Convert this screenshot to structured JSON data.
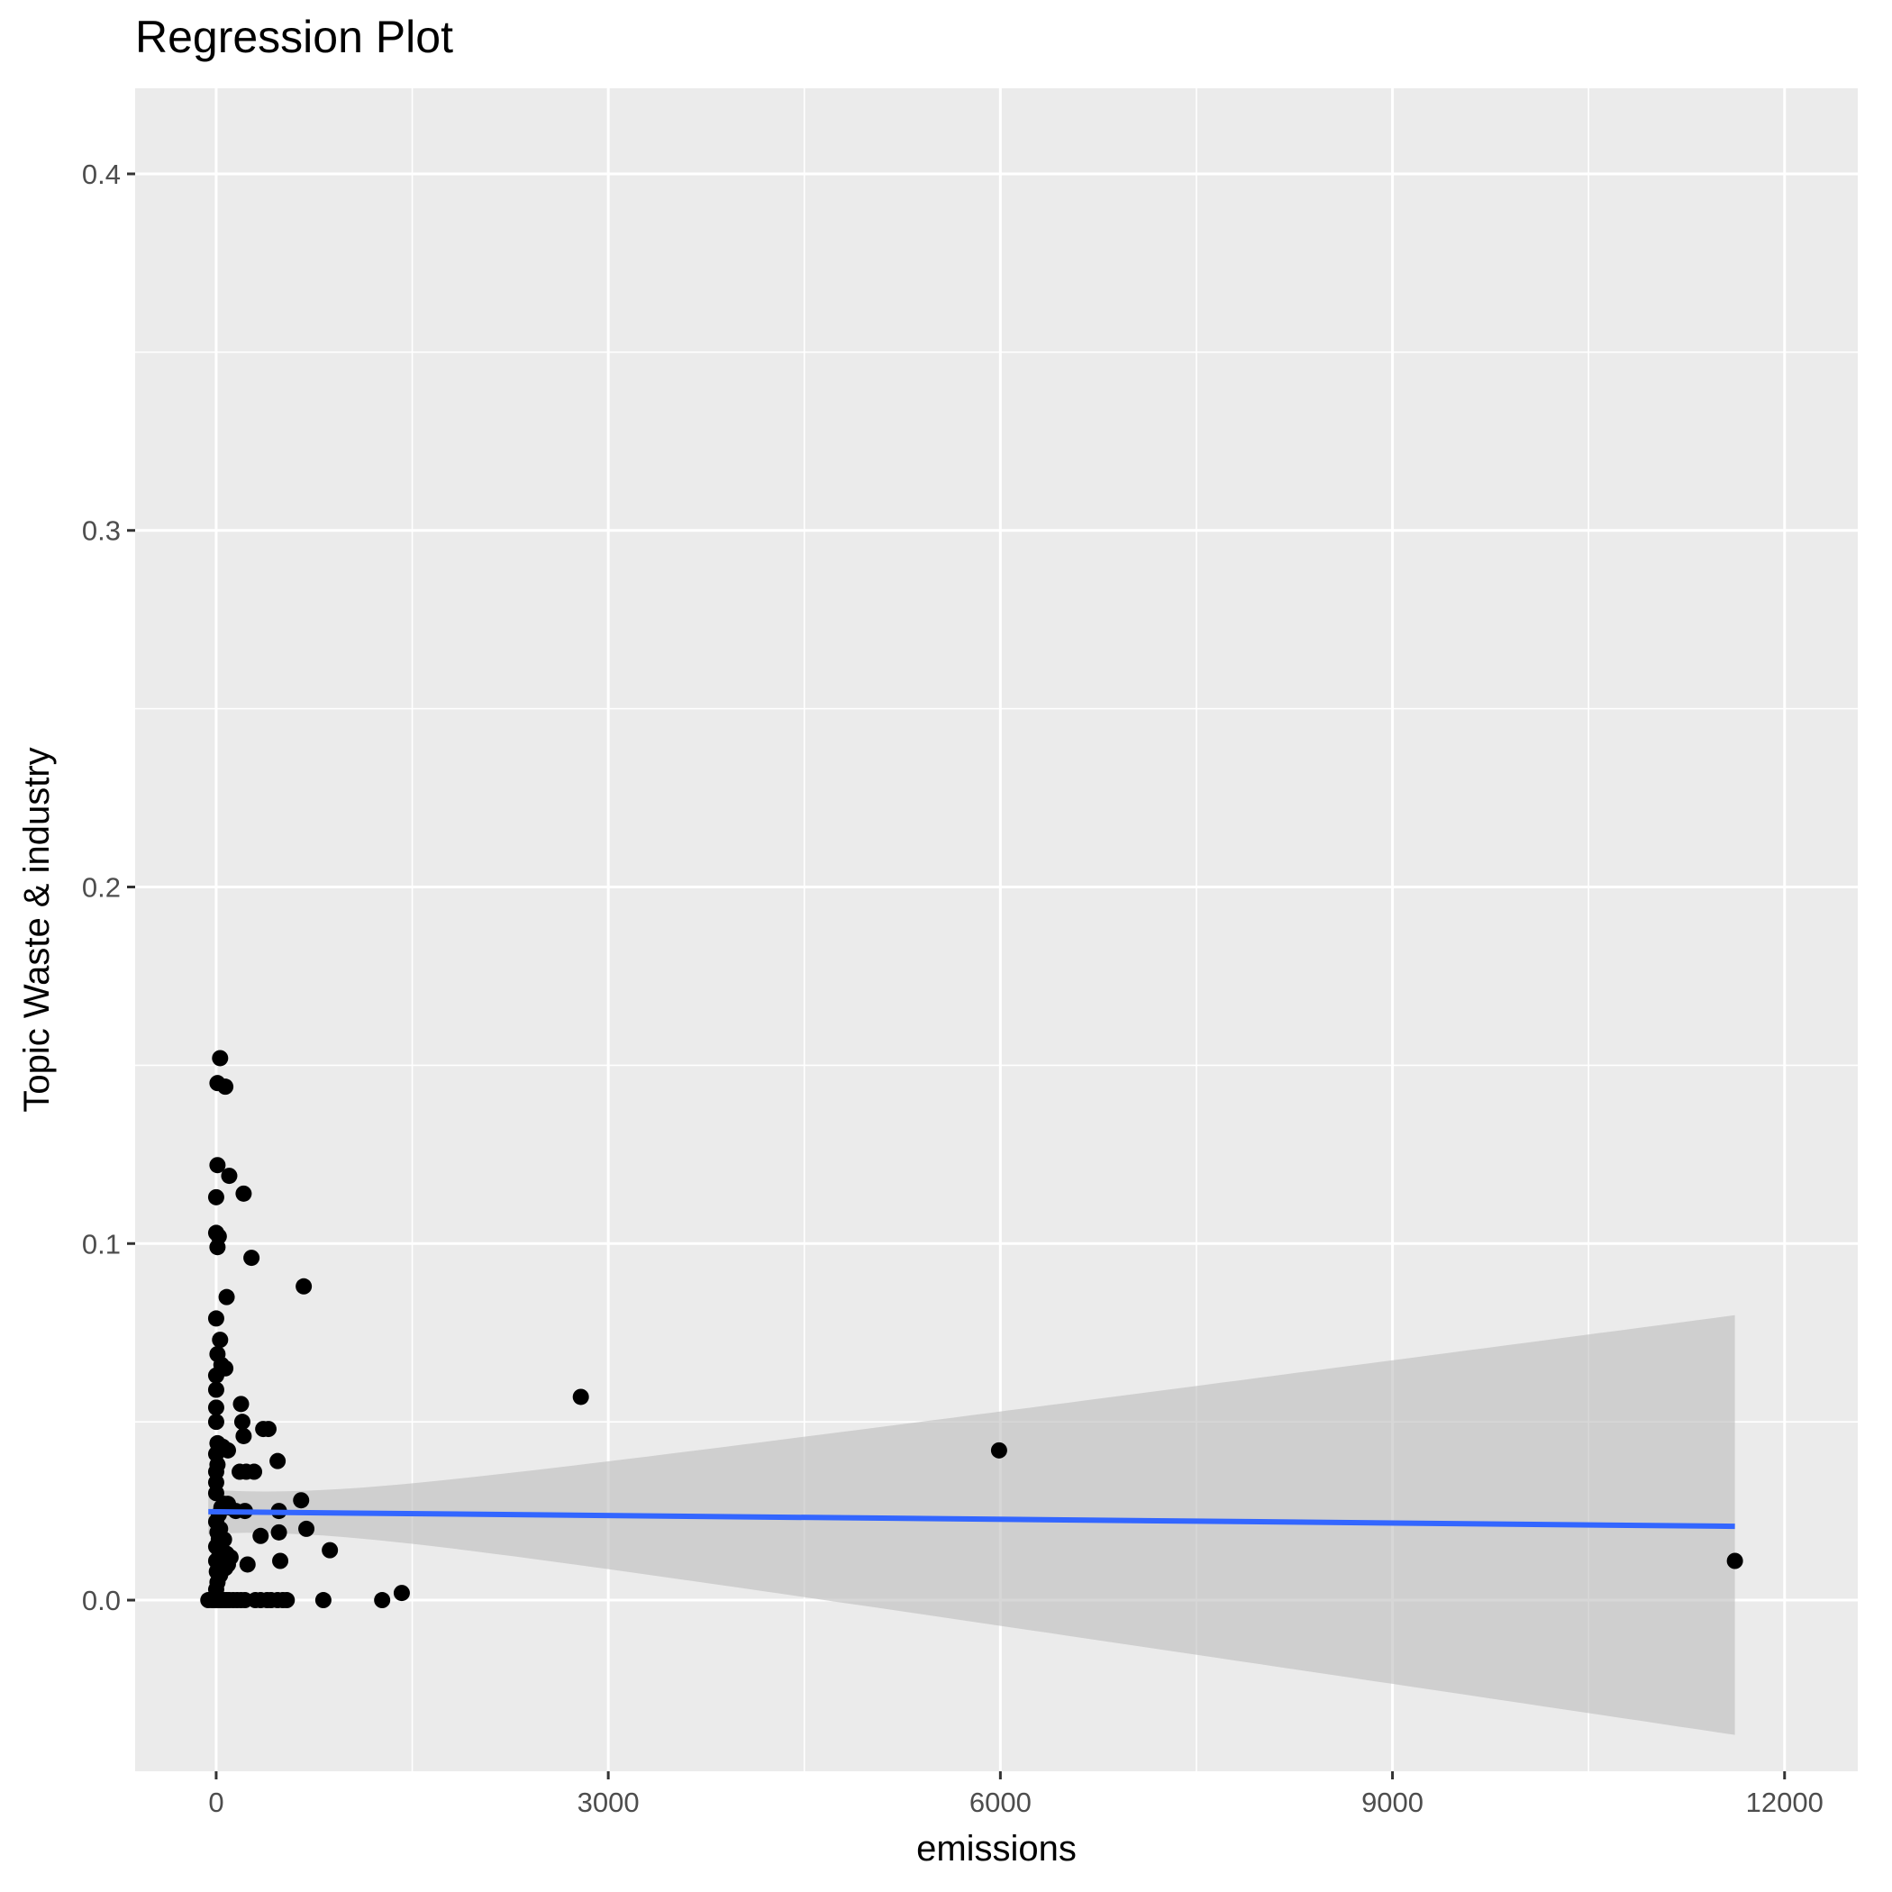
{
  "chart_data": {
    "type": "scatter",
    "title": "Regression Plot",
    "xlabel": "emissions",
    "ylabel": "Topic Waste & industry",
    "xlim": [
      -620,
      12560
    ],
    "ylim": [
      -0.048,
      0.424
    ],
    "x_ticks": [
      0,
      3000,
      6000,
      9000,
      12000
    ],
    "x_tick_labels": [
      "0",
      "3000",
      "6000",
      "9000",
      "12000"
    ],
    "y_ticks": [
      0.0,
      0.1,
      0.2,
      0.3,
      0.4
    ],
    "y_tick_labels": [
      "0.0",
      "0.1",
      "0.2",
      "0.3",
      "0.4"
    ],
    "grid": true,
    "colors": {
      "panel_background": "#ebebeb",
      "grid_line": "#ffffff",
      "point": "#000000",
      "fit_line": "#3366ff",
      "confidence_band": "#bdbdbd"
    },
    "series": [
      {
        "type": "scatter",
        "points": [
          [
            -60,
            0.0
          ],
          [
            -30,
            0.0
          ],
          [
            -10,
            0.0
          ],
          [
            0,
            0.0
          ],
          [
            10,
            0.0
          ],
          [
            20,
            0.0
          ],
          [
            30,
            0.0
          ],
          [
            45,
            0.0
          ],
          [
            60,
            0.0
          ],
          [
            80,
            0.0
          ],
          [
            100,
            0.0
          ],
          [
            130,
            0.0
          ],
          [
            160,
            0.0
          ],
          [
            190,
            0.0
          ],
          [
            220,
            0.0
          ],
          [
            300,
            0.0
          ],
          [
            340,
            0.0
          ],
          [
            390,
            0.0
          ],
          [
            420,
            0.0
          ],
          [
            470,
            0.0
          ],
          [
            510,
            0.0
          ],
          [
            540,
            0.0
          ],
          [
            820,
            0.0
          ],
          [
            1270,
            0.0
          ],
          [
            1420,
            0.002
          ],
          [
            0,
            0.003
          ],
          [
            10,
            0.005
          ],
          [
            30,
            0.007
          ],
          [
            5,
            0.008
          ],
          [
            40,
            0.009
          ],
          [
            70,
            0.009
          ],
          [
            90,
            0.01
          ],
          [
            0,
            0.011
          ],
          [
            20,
            0.012
          ],
          [
            50,
            0.013
          ],
          [
            80,
            0.013
          ],
          [
            110,
            0.012
          ],
          [
            0,
            0.015
          ],
          [
            20,
            0.017
          ],
          [
            60,
            0.017
          ],
          [
            10,
            0.019
          ],
          [
            30,
            0.02
          ],
          [
            0,
            0.022
          ],
          [
            20,
            0.024
          ],
          [
            40,
            0.026
          ],
          [
            60,
            0.027
          ],
          [
            90,
            0.027
          ],
          [
            100,
            0.026
          ],
          [
            150,
            0.025
          ],
          [
            220,
            0.025
          ],
          [
            240,
            0.01
          ],
          [
            340,
            0.018
          ],
          [
            480,
            0.019
          ],
          [
            480,
            0.025
          ],
          [
            490,
            0.011
          ],
          [
            650,
            0.028
          ],
          [
            690,
            0.02
          ],
          [
            870,
            0.014
          ],
          [
            0,
            0.03
          ],
          [
            0,
            0.033
          ],
          [
            0,
            0.036
          ],
          [
            180,
            0.036
          ],
          [
            230,
            0.036
          ],
          [
            290,
            0.036
          ],
          [
            10,
            0.038
          ],
          [
            0,
            0.041
          ],
          [
            10,
            0.044
          ],
          [
            50,
            0.043
          ],
          [
            90,
            0.042
          ],
          [
            210,
            0.046
          ],
          [
            200,
            0.05
          ],
          [
            0,
            0.05
          ],
          [
            360,
            0.048
          ],
          [
            400,
            0.048
          ],
          [
            470,
            0.039
          ],
          [
            0,
            0.054
          ],
          [
            190,
            0.055
          ],
          [
            0,
            0.059
          ],
          [
            0,
            0.063
          ],
          [
            40,
            0.066
          ],
          [
            70,
            0.065
          ],
          [
            10,
            0.069
          ],
          [
            30,
            0.073
          ],
          [
            0,
            0.079
          ],
          [
            80,
            0.085
          ],
          [
            670,
            0.088
          ],
          [
            270,
            0.096
          ],
          [
            10,
            0.099
          ],
          [
            20,
            0.102
          ],
          [
            0,
            0.103
          ],
          [
            0,
            0.113
          ],
          [
            210,
            0.114
          ],
          [
            100,
            0.119
          ],
          [
            10,
            0.122
          ],
          [
            10,
            0.145
          ],
          [
            70,
            0.144
          ],
          [
            30,
            0.152
          ],
          [
            2790,
            0.057
          ],
          [
            5990,
            0.042
          ],
          [
            11620,
            0.011
          ]
        ]
      },
      {
        "type": "line",
        "method": "linear fit with confidence band",
        "x": [
          -60,
          11620
        ],
        "y": [
          0.0248,
          0.0207
        ],
        "band_upper": [
          0.031,
          0.0799
        ],
        "band_lower": [
          0.0185,
          -0.0378
        ]
      }
    ]
  }
}
